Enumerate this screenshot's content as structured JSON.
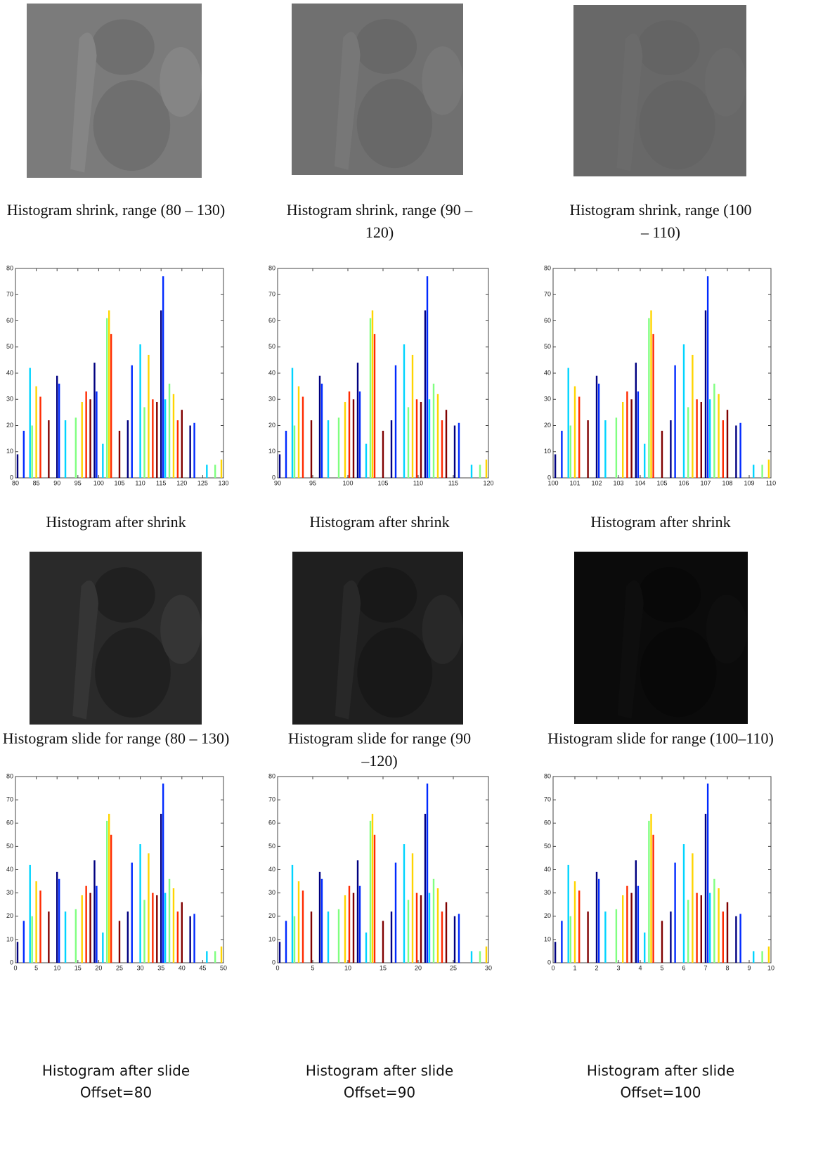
{
  "images": [
    {
      "caption": "Histogram shrink, range (80 – 130)"
    },
    {
      "caption": "Histogram shrink, range (90 –120)"
    },
    {
      "caption": "Histogram shrink, range (100 – 110)"
    },
    {
      "caption": "Histogram slide for range (80 – 130)"
    },
    {
      "caption": "Histogram slide for range (90 –120)"
    },
    {
      "caption": "Histogram slide for range (100–110)"
    }
  ],
  "chart_data": [
    {
      "type": "bar",
      "title": "Histogram after shrink",
      "colormap": "jet",
      "x": [
        80.5,
        82,
        83.5,
        84,
        85,
        86,
        88,
        90,
        90.5,
        92,
        94.5,
        96,
        97,
        98,
        99,
        99.5,
        101,
        102,
        102.5,
        103,
        105,
        107,
        108,
        110,
        111,
        112,
        113,
        114,
        115,
        115.5,
        116,
        117,
        118,
        119,
        120,
        122,
        123,
        126,
        128,
        129.5
      ],
      "values": [
        9,
        18,
        42,
        20,
        35,
        31,
        22,
        39,
        36,
        22,
        23,
        29,
        33,
        30,
        44,
        33,
        13,
        61,
        64,
        55,
        18,
        22,
        43,
        51,
        27,
        47,
        30,
        29,
        64,
        77,
        30,
        36,
        32,
        22,
        26,
        20,
        21,
        5,
        5,
        7
      ],
      "xlim": [
        80,
        130
      ],
      "xticks": [
        80,
        85,
        90,
        95,
        100,
        105,
        110,
        115,
        120,
        125,
        130
      ],
      "ylim": [
        0,
        80
      ],
      "yticks": [
        0,
        10,
        20,
        30,
        40,
        50,
        60,
        70,
        80
      ]
    },
    {
      "type": "bar",
      "title": "Histogram after shrink",
      "colormap": "jet",
      "x": [
        90.3,
        91.2,
        92.1,
        92.4,
        93,
        93.6,
        94.8,
        96,
        96.3,
        97.2,
        98.7,
        99.6,
        100.2,
        100.8,
        101.4,
        101.7,
        102.6,
        103.2,
        103.5,
        103.8,
        105,
        106.2,
        106.8,
        108,
        108.6,
        109.2,
        109.8,
        110.4,
        111,
        111.3,
        111.6,
        112.2,
        112.8,
        113.4,
        114,
        115.2,
        115.8,
        117.6,
        118.8,
        119.7
      ],
      "values": [
        9,
        18,
        42,
        20,
        35,
        31,
        22,
        39,
        36,
        22,
        23,
        29,
        33,
        30,
        44,
        33,
        13,
        61,
        64,
        55,
        18,
        22,
        43,
        51,
        27,
        47,
        30,
        29,
        64,
        77,
        30,
        36,
        32,
        22,
        26,
        20,
        21,
        5,
        5,
        7
      ],
      "xlim": [
        90,
        120
      ],
      "xticks": [
        90,
        95,
        100,
        105,
        110,
        115,
        120
      ],
      "ylim": [
        0,
        80
      ],
      "yticks": [
        0,
        10,
        20,
        30,
        40,
        50,
        60,
        70,
        80
      ]
    },
    {
      "type": "bar",
      "title": "Histogram after shrink",
      "colormap": "jet",
      "x": [
        100.1,
        100.4,
        100.7,
        100.8,
        101,
        101.2,
        101.6,
        102,
        102.1,
        102.4,
        102.9,
        103.2,
        103.4,
        103.6,
        103.8,
        103.9,
        104.2,
        104.4,
        104.5,
        104.6,
        105,
        105.4,
        105.6,
        106,
        106.2,
        106.4,
        106.6,
        106.8,
        107,
        107.1,
        107.2,
        107.4,
        107.6,
        107.8,
        108,
        108.4,
        108.6,
        109.2,
        109.6,
        109.9
      ],
      "values": [
        9,
        18,
        42,
        20,
        35,
        31,
        22,
        39,
        36,
        22,
        23,
        29,
        33,
        30,
        44,
        33,
        13,
        61,
        64,
        55,
        18,
        22,
        43,
        51,
        27,
        47,
        30,
        29,
        64,
        77,
        30,
        36,
        32,
        22,
        26,
        20,
        21,
        5,
        5,
        7
      ],
      "xlim": [
        100,
        110
      ],
      "xticks": [
        100,
        101,
        102,
        103,
        104,
        105,
        106,
        107,
        108,
        109,
        110
      ],
      "ylim": [
        0,
        80
      ],
      "yticks": [
        0,
        10,
        20,
        30,
        40,
        50,
        60,
        70,
        80
      ]
    },
    {
      "type": "bar",
      "title": "Histogram after slide",
      "subtitle": "Offset=80",
      "colormap": "jet",
      "x": [
        0.5,
        2,
        3.5,
        4,
        5,
        6,
        8,
        10,
        10.5,
        12,
        14.5,
        16,
        17,
        18,
        19,
        19.5,
        21,
        22,
        22.5,
        23,
        25,
        27,
        28,
        30,
        31,
        32,
        33,
        34,
        35,
        35.5,
        36,
        37,
        38,
        39,
        40,
        42,
        43,
        46,
        48,
        49.5
      ],
      "values": [
        9,
        18,
        42,
        20,
        35,
        31,
        22,
        39,
        36,
        22,
        23,
        29,
        33,
        30,
        44,
        33,
        13,
        61,
        64,
        55,
        18,
        22,
        43,
        51,
        27,
        47,
        30,
        29,
        64,
        77,
        30,
        36,
        32,
        22,
        26,
        20,
        21,
        5,
        5,
        7
      ],
      "xlim": [
        0,
        50
      ],
      "xticks": [
        0,
        5,
        10,
        15,
        20,
        25,
        30,
        35,
        40,
        45,
        50
      ],
      "ylim": [
        0,
        80
      ],
      "yticks": [
        0,
        10,
        20,
        30,
        40,
        50,
        60,
        70,
        80
      ]
    },
    {
      "type": "bar",
      "title": "Histogram after slide",
      "subtitle": "Offset=90",
      "colormap": "jet",
      "x": [
        0.3,
        1.2,
        2.1,
        2.4,
        3,
        3.6,
        4.8,
        6,
        6.3,
        7.2,
        8.7,
        9.6,
        10.2,
        10.8,
        11.4,
        11.7,
        12.6,
        13.2,
        13.5,
        13.8,
        15,
        16.2,
        16.8,
        18,
        18.6,
        19.2,
        19.8,
        20.4,
        21,
        21.3,
        21.6,
        22.2,
        22.8,
        23.4,
        24,
        25.2,
        25.8,
        27.6,
        28.8,
        29.7
      ],
      "values": [
        9,
        18,
        42,
        20,
        35,
        31,
        22,
        39,
        36,
        22,
        23,
        29,
        33,
        30,
        44,
        33,
        13,
        61,
        64,
        55,
        18,
        22,
        43,
        51,
        27,
        47,
        30,
        29,
        64,
        77,
        30,
        36,
        32,
        22,
        26,
        20,
        21,
        5,
        5,
        7
      ],
      "xlim": [
        0,
        30
      ],
      "xticks": [
        0,
        5,
        10,
        15,
        20,
        25,
        30
      ],
      "ylim": [
        0,
        80
      ],
      "yticks": [
        0,
        10,
        20,
        30,
        40,
        50,
        60,
        70,
        80
      ]
    },
    {
      "type": "bar",
      "title": "Histogram after slide",
      "subtitle": "Offset=100",
      "colormap": "jet",
      "x": [
        0.1,
        0.4,
        0.7,
        0.8,
        1,
        1.2,
        1.6,
        2,
        2.1,
        2.4,
        2.9,
        3.2,
        3.4,
        3.6,
        3.8,
        3.9,
        4.2,
        4.4,
        4.5,
        4.6,
        5,
        5.4,
        5.6,
        6,
        6.2,
        6.4,
        6.6,
        6.8,
        7,
        7.1,
        7.2,
        7.4,
        7.6,
        7.8,
        8,
        8.4,
        8.6,
        9.2,
        9.6,
        9.9
      ],
      "values": [
        9,
        18,
        42,
        20,
        35,
        31,
        22,
        39,
        36,
        22,
        23,
        29,
        33,
        30,
        44,
        33,
        13,
        61,
        64,
        55,
        18,
        22,
        43,
        51,
        27,
        47,
        30,
        29,
        64,
        77,
        30,
        36,
        32,
        22,
        26,
        20,
        21,
        5,
        5,
        7
      ],
      "xlim": [
        0,
        10
      ],
      "xticks": [
        0,
        1,
        2,
        3,
        4,
        5,
        6,
        7,
        8,
        9,
        10
      ],
      "ylim": [
        0,
        80
      ],
      "yticks": [
        0,
        10,
        20,
        30,
        40,
        50,
        60,
        70,
        80
      ]
    }
  ]
}
